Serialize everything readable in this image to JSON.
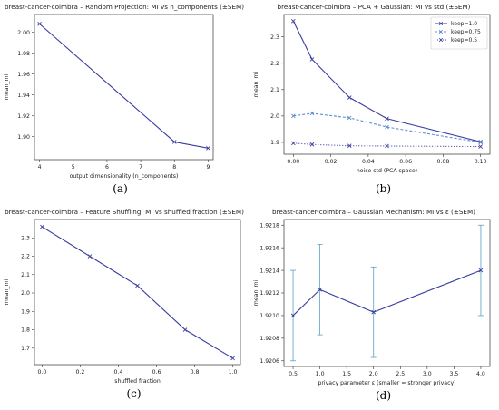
{
  "chart_data": [
    {
      "panel": "(a)",
      "type": "line",
      "title": "breast-cancer-coimbra – Random Projection: MI vs n_components (±SEM)",
      "xlabel": "output dimensionality (n_components)",
      "ylabel": "mean_mi",
      "xlim": [
        3.85,
        9.15
      ],
      "ylim": [
        1.878,
        2.017
      ],
      "xticks": [
        4,
        5,
        6,
        7,
        8,
        9
      ],
      "yticks": [
        1.9,
        1.92,
        1.94,
        1.96,
        1.98,
        2.0
      ],
      "ytick_decimals": 2,
      "series": [
        {
          "x": [
            4,
            8,
            9
          ],
          "y": [
            2.008,
            1.895,
            1.889
          ],
          "color": "#3b3fa0",
          "dash": "",
          "marker": "x",
          "errors": [
            0,
            0,
            0
          ]
        }
      ],
      "legend": null
    },
    {
      "panel": "(b)",
      "type": "line",
      "title": "breast-cancer-coimbra – PCA + Gaussian: MI vs std (±SEM)",
      "xlabel": "noise std (PCA space)",
      "ylabel": "mean_mi",
      "xlim": [
        -0.005,
        0.105
      ],
      "ylim": [
        1.855,
        2.385
      ],
      "xticks": [
        0.0,
        0.02,
        0.04,
        0.06,
        0.08,
        0.1
      ],
      "yticks": [
        1.9,
        2.0,
        2.1,
        2.2,
        2.3
      ],
      "xtick_decimals": 2,
      "ytick_decimals": 1,
      "series": [
        {
          "name": "keep=1.0",
          "x": [
            0.0,
            0.01,
            0.03,
            0.05,
            0.1
          ],
          "y": [
            2.36,
            2.215,
            2.07,
            1.99,
            1.902
          ],
          "color": "#3b3fa0",
          "dash": "",
          "marker": "x",
          "errors": [
            0,
            0,
            0,
            0,
            0
          ]
        },
        {
          "name": "keep=0.75",
          "x": [
            0.0,
            0.01,
            0.03,
            0.05,
            0.1
          ],
          "y": [
            2.0,
            2.01,
            1.993,
            1.958,
            1.9
          ],
          "color": "#5b8fd0",
          "dash": "3,2",
          "marker": "x",
          "errors": [
            0,
            0,
            0,
            0,
            0
          ]
        },
        {
          "name": "keep=0.5",
          "x": [
            0.0,
            0.01,
            0.03,
            0.05,
            0.1
          ],
          "y": [
            1.897,
            1.892,
            1.887,
            1.886,
            1.884
          ],
          "color": "#3b3fa0",
          "dash": "1,2",
          "marker": "x",
          "errors": [
            0,
            0,
            0,
            0,
            0
          ]
        }
      ],
      "legend": "top-right"
    },
    {
      "panel": "(c)",
      "type": "line",
      "title": "breast-cancer-coimbra – Feature Shuffling: MI vs shuffled fraction (±SEM)",
      "xlabel": "shuffled fraction",
      "ylabel": "mean_mi",
      "xlim": [
        -0.04,
        1.04
      ],
      "ylim": [
        1.61,
        2.4
      ],
      "xticks": [
        0.0,
        0.2,
        0.4,
        0.6,
        0.8,
        1.0
      ],
      "yticks": [
        1.7,
        1.8,
        1.9,
        2.0,
        2.1,
        2.2,
        2.3
      ],
      "xtick_decimals": 1,
      "ytick_decimals": 1,
      "series": [
        {
          "x": [
            0.0,
            0.25,
            0.5,
            0.75,
            1.0
          ],
          "y": [
            2.36,
            2.2,
            2.04,
            1.8,
            1.645
          ],
          "color": "#3b3fa0",
          "dash": "",
          "marker": "x",
          "errors": [
            0,
            0,
            0,
            0,
            0
          ]
        }
      ],
      "legend": null
    },
    {
      "panel": "(d)",
      "type": "line",
      "title": "breast-cancer-coimbra – Gaussian Mechanism: MI vs ε (±SEM)",
      "xlabel": "privacy parameter ε (smaller = stronger privacy)",
      "ylabel": "mean_mi",
      "xlim": [
        0.33,
        4.17
      ],
      "ylim": [
        1.92055,
        1.92185
      ],
      "xticks": [
        0.5,
        1.0,
        1.5,
        2.0,
        2.5,
        3.0,
        3.5,
        4.0
      ],
      "yticks": [
        1.9206,
        1.9208,
        1.921,
        1.9212,
        1.9214,
        1.9216,
        1.9218
      ],
      "xtick_decimals": 1,
      "ytick_decimals": 4,
      "series": [
        {
          "x": [
            0.5,
            1.0,
            2.0,
            4.0
          ],
          "y": [
            1.921,
            1.92123,
            1.92103,
            1.9214
          ],
          "color": "#3b3fa0",
          "dash": "",
          "marker": "x",
          "errors": [
            0.0004,
            0.0004,
            0.0004,
            0.0004
          ]
        }
      ],
      "legend": null
    }
  ]
}
